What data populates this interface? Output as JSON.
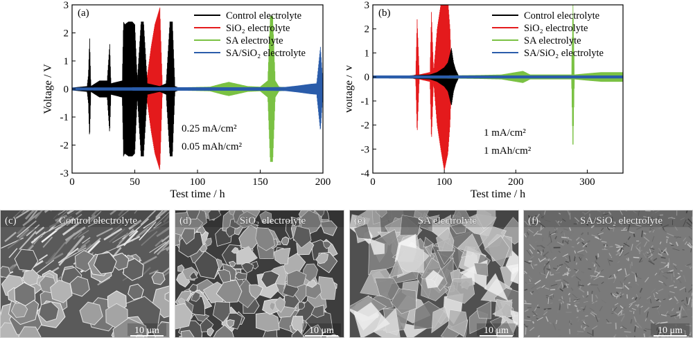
{
  "chart_data": [
    {
      "type": "line",
      "panel_label": "(a)",
      "xlabel": "Test time / h",
      "ylabel": "Voltage / V",
      "xlim": [
        0,
        200
      ],
      "ylim": [
        -3,
        3
      ],
      "xticks": [
        0,
        50,
        100,
        150,
        200
      ],
      "yticks": [
        -3,
        -2,
        -1,
        0,
        1,
        2,
        3
      ],
      "grid": false,
      "legend_position": "top-right",
      "annotations": [
        "0.25 mA/cm²",
        "0.05 mAh/cm²"
      ],
      "series": [
        {
          "name": "Control electrolyte",
          "color": "#000000",
          "x": [
            0,
            12,
            13,
            14,
            15,
            22,
            28,
            30,
            31,
            40,
            41,
            42,
            45,
            48,
            50,
            52,
            55,
            57,
            60,
            70,
            75,
            78,
            80,
            82,
            85,
            88,
            90,
            100,
            110,
            120,
            130,
            140,
            150,
            160,
            170,
            180,
            190,
            200
          ],
          "amplitude": [
            0.05,
            0.1,
            0.5,
            1.8,
            0.1,
            0.3,
            0.3,
            1.6,
            0.2,
            0.3,
            2.4,
            2.3,
            2.4,
            2.4,
            2.3,
            0.3,
            2.4,
            2.4,
            0.2,
            0.1,
            0.2,
            2.4,
            2.4,
            0.1,
            0.05,
            0.05,
            0.05,
            0.05,
            0.05,
            0.05,
            0.05,
            0.05,
            0.05,
            0.05,
            0.05,
            0.05,
            0.05,
            0.05
          ]
        },
        {
          "name": "SiO₂ electrolyte",
          "color": "#e41a1c",
          "x": [
            0,
            20,
            40,
            55,
            60,
            63,
            66,
            70,
            72,
            75,
            80,
            100,
            120,
            140,
            160,
            180,
            200
          ],
          "amplitude": [
            0.04,
            0.05,
            0.05,
            0.1,
            0.5,
            1.5,
            2.3,
            2.9,
            0.1,
            0.05,
            0.04,
            0.04,
            0.04,
            0.04,
            0.04,
            0.04,
            0.04
          ]
        },
        {
          "name": "SA electrolyte",
          "color": "#7ac143",
          "x": [
            0,
            40,
            80,
            110,
            120,
            125,
            130,
            140,
            150,
            156,
            158,
            160,
            162,
            165,
            170,
            180,
            190,
            200
          ],
          "amplitude": [
            0.04,
            0.05,
            0.05,
            0.08,
            0.2,
            0.25,
            0.2,
            0.1,
            0.08,
            0.3,
            2.6,
            2.6,
            0.3,
            0.08,
            0.06,
            0.06,
            0.05,
            0.05
          ]
        },
        {
          "name": "SA/SiO₂ electrolyte",
          "color": "#2a5caa",
          "x": [
            0,
            50,
            100,
            150,
            170,
            180,
            190,
            195,
            198,
            200
          ],
          "amplitude": [
            0.05,
            0.06,
            0.06,
            0.06,
            0.07,
            0.12,
            0.18,
            0.2,
            1.5,
            0.2
          ]
        }
      ]
    },
    {
      "type": "line",
      "panel_label": "(b)",
      "xlabel": "Test time / h",
      "ylabel": "Voltage / V",
      "xlim": [
        0,
        350
      ],
      "ylim": [
        -4,
        3
      ],
      "xticks": [
        0,
        100,
        200,
        300
      ],
      "yticks": [
        -4,
        -3,
        -2,
        -1,
        0,
        1,
        2,
        3
      ],
      "grid": false,
      "legend_position": "top-right",
      "annotations": [
        "1 mA/cm²",
        "1 mAh/cm²"
      ],
      "series": [
        {
          "name": "Control electrolyte",
          "color": "#000000",
          "x": [
            0,
            50,
            80,
            90,
            95,
            100,
            105,
            110,
            113,
            116,
            120,
            200,
            350
          ],
          "amplitude": [
            0.05,
            0.06,
            0.1,
            0.2,
            0.3,
            0.4,
            0.6,
            1.2,
            0.6,
            0.3,
            0.05,
            0.05,
            0.05
          ]
        },
        {
          "name": "SiO₂ electrolyte",
          "color": "#e41a1c",
          "x": [
            0,
            55,
            60,
            62,
            65,
            80,
            82,
            85,
            90,
            95,
            100,
            105,
            108,
            110,
            115,
            200,
            350
          ],
          "amplitude": [
            0.05,
            0.05,
            0.1,
            2.4,
            0.1,
            0.2,
            2.7,
            0.2,
            2.0,
            3.0,
            3.9,
            3.2,
            2.0,
            0.2,
            0.05,
            0.05,
            0.05
          ]
        },
        {
          "name": "SA electrolyte",
          "color": "#7ac143",
          "x": [
            0,
            100,
            150,
            180,
            200,
            210,
            220,
            260,
            278,
            280,
            282,
            300,
            320,
            350
          ],
          "amplitude": [
            0.05,
            0.06,
            0.08,
            0.1,
            0.2,
            0.25,
            0.1,
            0.1,
            0.1,
            3.2,
            0.1,
            0.15,
            0.2,
            0.2
          ]
        },
        {
          "name": "SA/SiO₂ electrolyte",
          "color": "#2a5caa",
          "x": [
            0,
            100,
            200,
            300,
            350
          ],
          "amplitude": [
            0.06,
            0.06,
            0.06,
            0.06,
            0.06
          ]
        }
      ]
    }
  ],
  "micrographs": [
    {
      "label": "(c)",
      "title": "Control electrolyte",
      "scale_bar": "10 μm",
      "texture": "hexagonal-plates"
    },
    {
      "label": "(d)",
      "title": "SiO₂ electrolyte",
      "scale_bar": "10 μm",
      "texture": "angular-flakes"
    },
    {
      "label": "(e)",
      "title": "SA electrolyte",
      "scale_bar": "10 μm",
      "texture": "crumpled-sheets"
    },
    {
      "label": "(f)",
      "title": "SA/SiO₂ electrolyte",
      "scale_bar": "10 μm",
      "texture": "fine-dense"
    }
  ]
}
